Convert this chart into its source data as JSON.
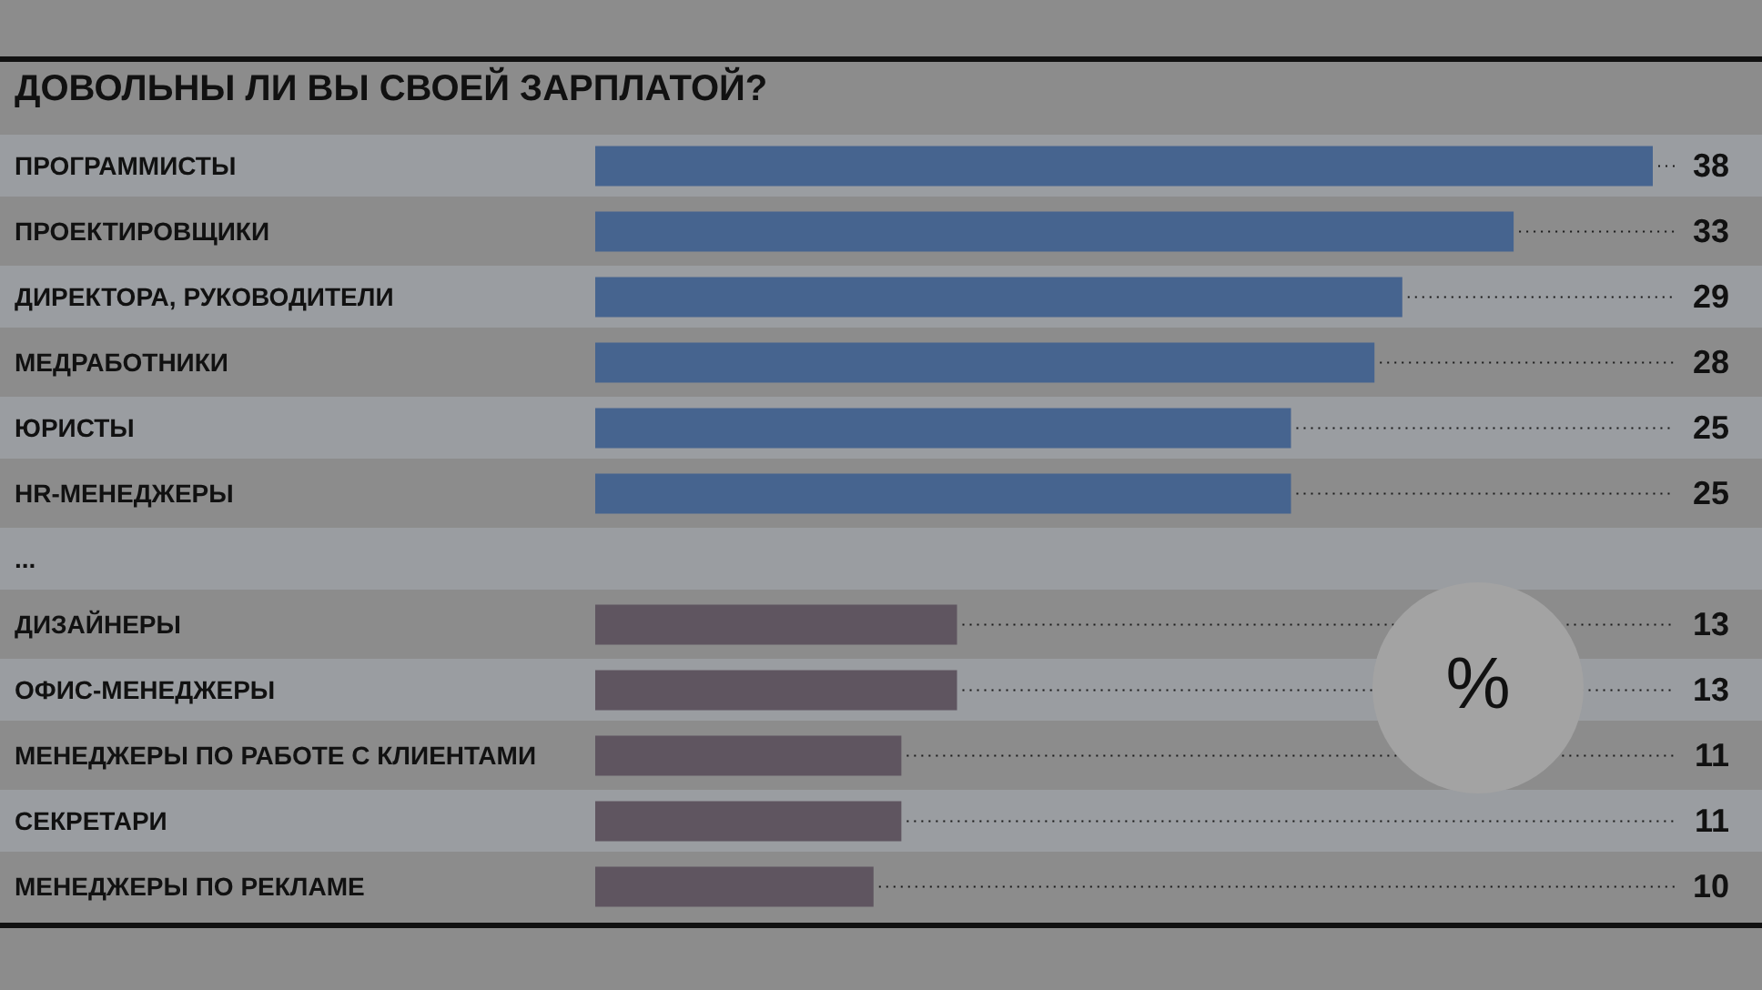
{
  "chart_data": {
    "type": "bar",
    "orientation": "horizontal",
    "title": "ДОВОЛЬНЫ ЛИ ВЫ СВОЕЙ ЗАРПЛАТОЙ?",
    "categories": [
      "ПРОГРАММИСТЫ",
      "ПРОЕКТИРОВЩИКИ",
      "ДИРЕКТОРА, РУКОВОДИТЕЛИ",
      "МЕДРАБОТНИКИ",
      "ЮРИСТЫ",
      "HR-МЕНЕДЖЕРЫ",
      "...",
      "ДИЗАЙНЕРЫ",
      "ОФИС-МЕНЕДЖЕРЫ",
      "МЕНЕДЖЕРЫ ПО РАБОТЕ С КЛИЕНТАМИ",
      "СЕКРЕТАРИ",
      "МЕНЕДЖЕРЫ ПО РЕКЛАМЕ"
    ],
    "values": [
      38,
      33,
      29,
      28,
      25,
      25,
      null,
      13,
      13,
      11,
      11,
      10
    ],
    "colors": [
      "#46648f",
      "#46648f",
      "#46648f",
      "#46648f",
      "#46648f",
      "#46648f",
      "#46648f",
      "#5f5560",
      "#5f5560",
      "#5f5560",
      "#5f5560",
      "#5f5560"
    ],
    "data_labels": true,
    "grid": "y",
    "annotations": [
      "%"
    ]
  }
}
